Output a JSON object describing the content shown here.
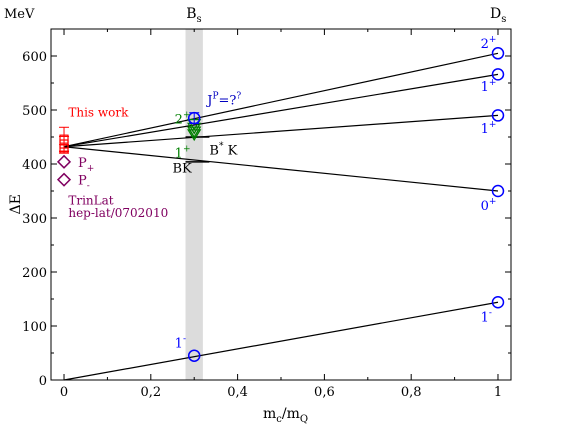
{
  "chart_data": {
    "type": "scatter",
    "xlabel": "m_c/m_Q",
    "ylabel": "ΔE",
    "unit_label": "MeV",
    "xlim": [
      -0.03,
      1.03
    ],
    "ylim": [
      0,
      650
    ],
    "x_ticks": [
      0,
      0.2,
      0.4,
      0.6,
      0.8,
      1
    ],
    "x_tick_labels": [
      "0",
      "0,2",
      "0,4",
      "0,6",
      "0,8",
      "1"
    ],
    "y_ticks": [
      0,
      100,
      200,
      300,
      400,
      500,
      600
    ],
    "y_tick_labels": [
      "0",
      "100",
      "200",
      "300",
      "400",
      "500",
      "600"
    ],
    "top_labels": [
      {
        "x": 0.3,
        "base": "B",
        "sub": "s"
      },
      {
        "x": 1.0,
        "base": "D",
        "sub": "s"
      }
    ],
    "band": {
      "x0": 0.28,
      "x1": 0.32
    },
    "lines": [
      {
        "x0": 0,
        "y0": 432,
        "x1": 1,
        "y1": 605
      },
      {
        "x0": 0,
        "y0": 432,
        "x1": 1,
        "y1": 566
      },
      {
        "x0": 0,
        "y0": 432,
        "x1": 1,
        "y1": 490
      },
      {
        "x0": 0,
        "y0": 432,
        "x1": 1,
        "y1": 350
      },
      {
        "x0": 0,
        "y0": 0,
        "x1": 1,
        "y1": 144
      }
    ],
    "thresholds": [
      {
        "x0": 0.28,
        "x1": 0.335,
        "y": 404,
        "base": "BK",
        "sup": "",
        "lx": 0.25,
        "ly": 384
      },
      {
        "x0": 0.28,
        "x1": 0.335,
        "y": 450,
        "base": "B",
        "sup": "*",
        "suffix": " K",
        "lx": 0.335,
        "ly": 418
      }
    ],
    "series": [
      {
        "name": "This work",
        "color": "#ff0000",
        "marker": "square",
        "points": [
          {
            "x": 0,
            "y": 446,
            "err": 22
          },
          {
            "x": 0,
            "y": 437,
            "err": 14
          },
          {
            "x": 0,
            "y": 428,
            "err": 8
          }
        ]
      },
      {
        "name": "TrinLat hep-lat/0702010",
        "color": "#800060",
        "marker": "diamond",
        "points": [
          {
            "x": 0,
            "y": 404,
            "label": "P",
            "sub": "+"
          },
          {
            "x": 0,
            "y": 371,
            "label": "P",
            "sub": "-"
          }
        ]
      },
      {
        "name": "green",
        "color": "#008000",
        "marker": "triangle-down",
        "points": [
          {
            "x": 0.3,
            "y": 473
          },
          {
            "x": 0.3,
            "y": 466
          },
          {
            "x": 0.3,
            "y": 459
          },
          {
            "x": 0.3,
            "y": 454
          }
        ]
      },
      {
        "name": "blue",
        "color": "#0000ff",
        "marker": "circle",
        "points": [
          {
            "x": 0.3,
            "y": 45,
            "err": 0
          },
          {
            "x": 0.3,
            "y": 485,
            "err": 10
          },
          {
            "x": 1,
            "y": 605
          },
          {
            "x": 1,
            "y": 566
          },
          {
            "x": 1,
            "y": 490
          },
          {
            "x": 1,
            "y": 350
          },
          {
            "x": 1,
            "y": 144
          }
        ]
      }
    ],
    "state_labels": [
      {
        "x": 0.255,
        "y": 475,
        "base": "2",
        "sup": "+",
        "color": "#008000"
      },
      {
        "x": 0.255,
        "y": 412,
        "base": "1",
        "sup": "+",
        "color": "#008000"
      },
      {
        "x": 0.33,
        "y": 510,
        "base": "J",
        "sup": "P",
        "suffix": "=?",
        "sup2": "?",
        "color": "#0000c0"
      },
      {
        "x": 0.255,
        "y": 60,
        "base": "1",
        "sup": "-",
        "color": "#0000ff"
      },
      {
        "x": 0.96,
        "y": 615,
        "base": "2",
        "sup": "+",
        "color": "#0000ff"
      },
      {
        "x": 0.96,
        "y": 535,
        "base": "1",
        "sup": "+",
        "color": "#0000ff"
      },
      {
        "x": 0.96,
        "y": 457,
        "base": "1",
        "sup": "+",
        "color": "#0000ff"
      },
      {
        "x": 0.96,
        "y": 315,
        "base": "0",
        "sup": "+",
        "color": "#0000ff"
      },
      {
        "x": 0.96,
        "y": 108,
        "base": "1",
        "sup": "-",
        "color": "#0000ff"
      }
    ],
    "legend": [
      {
        "text": "This work",
        "color": "#ff0000",
        "x": 0.01,
        "y": 488
      },
      {
        "text": "TrinLat",
        "color": "#800060",
        "x": 0.01,
        "y": 325
      },
      {
        "text": "hep-lat/0702010",
        "color": "#800060",
        "x": 0.01,
        "y": 302
      }
    ]
  }
}
